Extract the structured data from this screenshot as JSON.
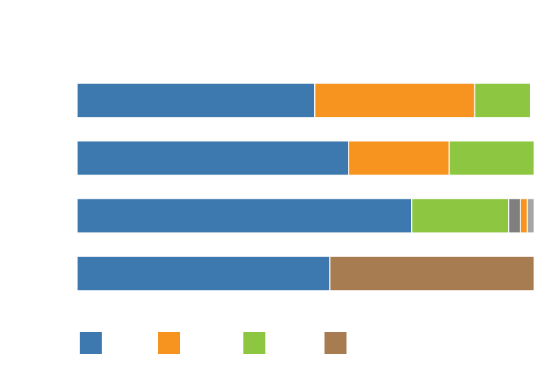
{
  "chart_data": {
    "type": "stacked-bar",
    "orientation": "horizontal",
    "categories": [
      null,
      null,
      null,
      null
    ],
    "xlim": [
      0,
      100
    ],
    "series": [
      {
        "color": "#3d78ae",
        "values": [
          52.0,
          59.4,
          73.2,
          55.3
        ],
        "legend": true
      },
      {
        "color": "#f7941f",
        "values": [
          35.0,
          22.0,
          0,
          0
        ],
        "legend": true
      },
      {
        "color": "#8dc641",
        "values": [
          12.2,
          18.6,
          21.2,
          0
        ],
        "legend": true
      },
      {
        "color": "#7f7f7f",
        "values": [
          0,
          0,
          2.6,
          0
        ],
        "legend": false
      },
      {
        "color": "#f7941f",
        "values": [
          0,
          0,
          1.5,
          0
        ],
        "legend": false
      },
      {
        "color": "#a6a6a6",
        "values": [
          0,
          0,
          1.5,
          0
        ],
        "legend": false
      },
      {
        "color": "#a77c50",
        "values": [
          0,
          0,
          0,
          44.7
        ],
        "legend": true
      }
    ]
  }
}
